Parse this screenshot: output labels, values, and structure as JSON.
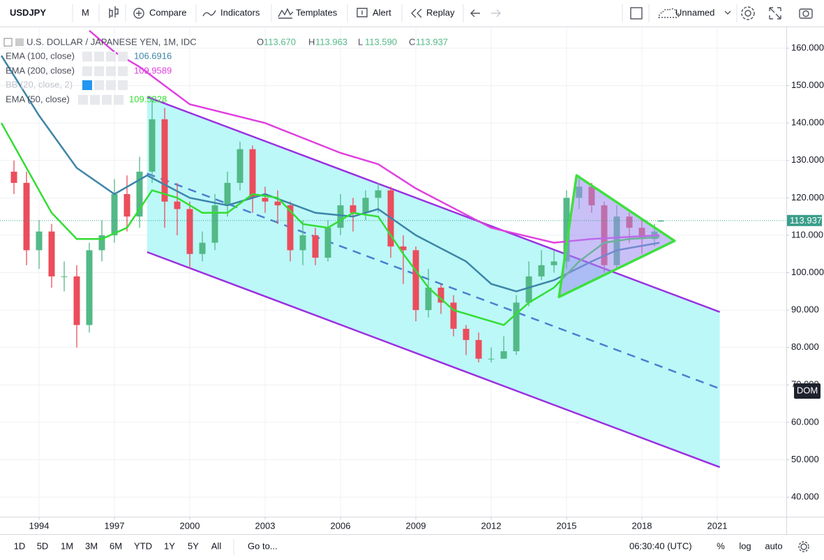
{
  "toolbar": {
    "symbol": "USDJPY",
    "interval": "M",
    "buttons": [
      "Compare",
      "Indicators",
      "Templates",
      "Alert",
      "Replay"
    ],
    "layout": "Unnamed"
  },
  "chart_data": {
    "type": "candlestick",
    "title": "U.S. DOLLAR / JAPANESE YEN, 1M, IDC",
    "ohlc_header": [
      {
        "key": "O",
        "text": "113.670"
      },
      {
        "key": "H",
        "text": "113.963"
      },
      {
        "key": "L",
        "text": "113.590"
      },
      {
        "key": "C",
        "text": "113.937"
      }
    ],
    "x": [
      1993.0,
      1993.5,
      1994.0,
      1994.5,
      1995.0,
      1995.5,
      1996.0,
      1996.5,
      1997.0,
      1997.5,
      1998.0,
      1998.5,
      1999.0,
      1999.5,
      2000.0,
      2000.5,
      2001.0,
      2001.5,
      2002.0,
      2002.5,
      2003.0,
      2003.5,
      2004.0,
      2004.5,
      2005.0,
      2005.5,
      2006.0,
      2006.5,
      2007.0,
      2007.5,
      2008.0,
      2008.5,
      2009.0,
      2009.5,
      2010.0,
      2010.5,
      2011.0,
      2011.5,
      2012.0,
      2012.5,
      2013.0,
      2013.5,
      2014.0,
      2014.5,
      2015.0,
      2015.5,
      2016.0,
      2016.5,
      2017.0,
      2017.5,
      2018.0,
      2018.5,
      2018.75
    ],
    "open": [
      127,
      124,
      106,
      111,
      99,
      99,
      86,
      106,
      110,
      121,
      115,
      127,
      141,
      119,
      117,
      105,
      108,
      118,
      124,
      133,
      120,
      119,
      118,
      106,
      110,
      104,
      112,
      118,
      116,
      120,
      122,
      107,
      106,
      90,
      96,
      92,
      85,
      82,
      77,
      77,
      79,
      92,
      99,
      102,
      103,
      120,
      123,
      118,
      102,
      115,
      112,
      109,
      113.67
    ],
    "high": [
      130,
      127,
      114,
      113,
      103,
      102,
      108,
      114,
      125,
      126,
      131,
      147,
      144,
      124,
      119,
      111,
      121,
      127,
      135,
      134,
      123,
      122,
      119,
      114,
      112,
      114,
      121,
      120,
      122,
      124,
      123,
      110,
      107,
      101,
      97,
      94,
      86,
      84,
      80,
      83,
      94,
      103,
      106,
      106,
      122,
      126,
      124,
      119,
      118,
      116,
      114,
      113,
      113.963
    ],
    "low": [
      121,
      102,
      101,
      96,
      95,
      80,
      84,
      103,
      108,
      111,
      112,
      124,
      112,
      110,
      101,
      103,
      106,
      115,
      122,
      116,
      116,
      113,
      103,
      102,
      102,
      103,
      110,
      111,
      114,
      116,
      104,
      97,
      87,
      88,
      89,
      83,
      78,
      76,
      76,
      77,
      78,
      91,
      98,
      100,
      101,
      117,
      116,
      100,
      101,
      108,
      105,
      107,
      113.59
    ],
    "close": [
      124,
      106,
      111,
      99,
      99,
      86,
      106,
      110,
      121,
      115,
      127,
      141,
      119,
      117,
      105,
      108,
      118,
      124,
      133,
      120,
      119,
      118,
      106,
      110,
      104,
      112,
      118,
      116,
      120,
      122,
      107,
      106,
      90,
      96,
      92,
      85,
      82,
      77,
      77,
      79,
      92,
      99,
      102,
      103,
      120,
      123,
      118,
      102,
      115,
      112,
      109,
      111,
      113.937
    ],
    "up_color": "#53b987",
    "down_color": "#eb4d5c",
    "overlays": [
      {
        "name": "EMA (100, close)",
        "color": "#3d85a8",
        "last_value": 106.6916,
        "x": [
          1992.5,
          1994,
          1995.5,
          1997,
          1998.3,
          2000,
          2001.5,
          2003,
          2005,
          2006.5,
          2007.5,
          2009,
          2011,
          2012,
          2013,
          2014.5,
          2016,
          2017,
          2018.7
        ],
        "values": [
          158,
          142,
          128,
          121,
          126,
          120,
          118,
          121,
          116,
          115,
          117,
          110,
          103,
          97,
          95,
          98,
          103,
          106,
          108
        ]
      },
      {
        "name": "EMA (200, close)",
        "color": "#e040e0",
        "last_value": 109.9589,
        "x": [
          1996,
          1997,
          1998,
          2000,
          2003,
          2006,
          2007.5,
          2009,
          2012,
          2014.5,
          2016,
          2018.7
        ],
        "values": [
          164.7,
          159,
          155,
          145,
          140,
          132,
          129,
          122.5,
          112,
          108,
          109,
          110
        ]
      },
      {
        "name": "EMA (50, close)",
        "color": "#33dd33",
        "last_value": 109.5228,
        "x": [
          1992.5,
          1993.5,
          1994.5,
          1995.5,
          1996.5,
          1997.5,
          1998.5,
          1999.5,
          2000.5,
          2001.5,
          2002.5,
          2003.5,
          2004.5,
          2005.5,
          2006.5,
          2007.5,
          2008.5,
          2009.5,
          2010.5,
          2011.5,
          2012.5,
          2013.5,
          2014.5,
          2015.5,
          2016.5,
          2017.5,
          2018.7
        ],
        "values": [
          140,
          128,
          116,
          109,
          109,
          112,
          122,
          120,
          116,
          116,
          121,
          120,
          113,
          112,
          116,
          115,
          105,
          96,
          90,
          88,
          86,
          92,
          96,
          103,
          108,
          109,
          109.5
        ]
      }
    ],
    "inactive_indicator": "BB (20, close, 2)",
    "channel": {
      "color": "#9b30e0",
      "fill": "#b5f7f7",
      "upper": {
        "x": [
          1998.3,
          2021.1
        ],
        "y": [
          147,
          89.5
        ]
      },
      "middle": {
        "x": [
          1998.3,
          2021.1
        ],
        "y": [
          126.5,
          69
        ]
      },
      "lower": {
        "x": [
          1998.3,
          2021.1
        ],
        "y": [
          105.5,
          48
        ]
      }
    },
    "triangle": {
      "color": "#3ee03e",
      "fill": "#9d8cf0",
      "x": [
        2015.4,
        2019.3,
        2014.7
      ],
      "y": [
        126,
        108.5,
        93.5
      ]
    },
    "last_price": 113.937,
    "last_price_color": "#3a9e8a",
    "dom_label": "DOM",
    "xlim": [
      1992.444,
      2023.75
    ],
    "ylim": [
      34.77,
      165.79
    ],
    "xticks": [
      1994,
      1997,
      2000,
      2003,
      2006,
      2009,
      2012,
      2015,
      2018,
      2021
    ],
    "yticks": [
      {
        "value": 40,
        "label": "40.000"
      },
      {
        "value": 50,
        "label": "50.000"
      },
      {
        "value": 60,
        "label": "60.000"
      },
      {
        "value": 70,
        "label": "70.000"
      },
      {
        "value": 80,
        "label": "80.000"
      },
      {
        "value": 90,
        "label": "90.000"
      },
      {
        "value": 100,
        "label": "100.000"
      },
      {
        "value": 110,
        "label": "110.000"
      },
      {
        "value": 120,
        "label": "120.000"
      },
      {
        "value": 130,
        "label": "130.000"
      },
      {
        "value": 140,
        "label": "140.000"
      },
      {
        "value": 150,
        "label": "150.000"
      },
      {
        "value": 160,
        "label": "160.000"
      }
    ],
    "grid": true
  },
  "bottom_bar": {
    "ranges": [
      "1D",
      "5D",
      "1M",
      "3M",
      "6M",
      "YTD",
      "1Y",
      "5Y",
      "All"
    ],
    "goto": "Go to...",
    "clock": "06:30:40 (UTC)",
    "options": [
      "%",
      "log",
      "auto"
    ]
  }
}
